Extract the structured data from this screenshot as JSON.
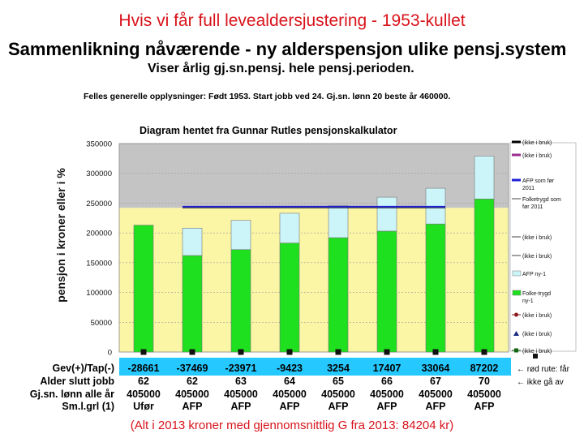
{
  "slide_title": "Hvis vi får full levealdersjustering - 1953-kullet",
  "main_heading": "Sammenlikning nåværende - ny alderspensjon ulike pensj.system",
  "sub_heading": "Viser årlig gj.sn.pensj. hele pensj.perioden.",
  "info_line": "Felles generelle opplysninger: Født 1953. Start jobb ved 24. Gj.sn. lønn 20 beste år 460000.",
  "footer_note": "(Alt i 2013 kroner med gjennomsnittlig G fra 2013: 84204 kr)",
  "colors": {
    "green": "#1ee01e",
    "lightblue": "#ccf5fa",
    "yellow": "#fbf5a6",
    "gray": "#c4c4c4",
    "blue": "#1f1fd8",
    "red": "#d8131b"
  },
  "chart_data": {
    "type": "bar",
    "title": "Diagram hentet fra Gunnar Rutles pensjonskalkulator",
    "ylabel": "pensjon i kroner eller i %",
    "ylim": [
      0,
      350000
    ],
    "yticks": [
      "0",
      "50000",
      "100000",
      "150000",
      "200000",
      "250000",
      "300000",
      "350000"
    ],
    "categories": [
      "Ufør",
      "AFP",
      "AFP",
      "AFP",
      "AFP",
      "AFP",
      "AFP",
      "AFP"
    ],
    "series": [
      {
        "name": "Folke-trygd ny-1",
        "values": [
          213000,
          162000,
          172000,
          183000,
          192000,
          203000,
          215000,
          257000
        ]
      },
      {
        "name": "AFP ny-1",
        "values": [
          0,
          46000,
          49000,
          50000,
          54000,
          57000,
          60000,
          72000
        ]
      }
    ],
    "reference_lines": [
      {
        "name": "Folketrygd som før 2011",
        "value": 242000
      },
      {
        "name": "AFP som før 2011",
        "value": 244000
      }
    ],
    "legend": {
      "placement": "right",
      "entries": [
        "(ikke i bruk)",
        "(ikke i bruk)",
        "AFP som før 2011",
        "Folketrygd som før 2011",
        "(ikke i bruk)",
        "(ikke i bruk)",
        "AFP ny-1",
        "Folke-trygd ny-1",
        "(ikke i bruk)",
        "(ikke i bruk)",
        "(ikke i bruk)"
      ]
    },
    "table": {
      "rows": [
        {
          "label": "Gev(+)/Tap(-)",
          "values": [
            "-28661",
            "-37469",
            "-23971",
            "-9423",
            "3254",
            "17407",
            "33064",
            "87202"
          ]
        },
        {
          "label": "Alder slutt jobb",
          "values": [
            "62",
            "62",
            "63",
            "64",
            "65",
            "66",
            "67",
            "70"
          ]
        },
        {
          "label": "Gj.sn. lønn alle år",
          "values": [
            "405000",
            "405000",
            "405000",
            "405000",
            "405000",
            "405000",
            "405000",
            "405000"
          ]
        },
        {
          "label": "Sm.l.grl (1)",
          "values": [
            "Ufør",
            "AFP",
            "AFP",
            "AFP",
            "AFP",
            "AFP",
            "AFP",
            "AFP"
          ]
        }
      ],
      "notes": [
        "← rød rute: får",
        "← ikke gå av"
      ]
    }
  }
}
